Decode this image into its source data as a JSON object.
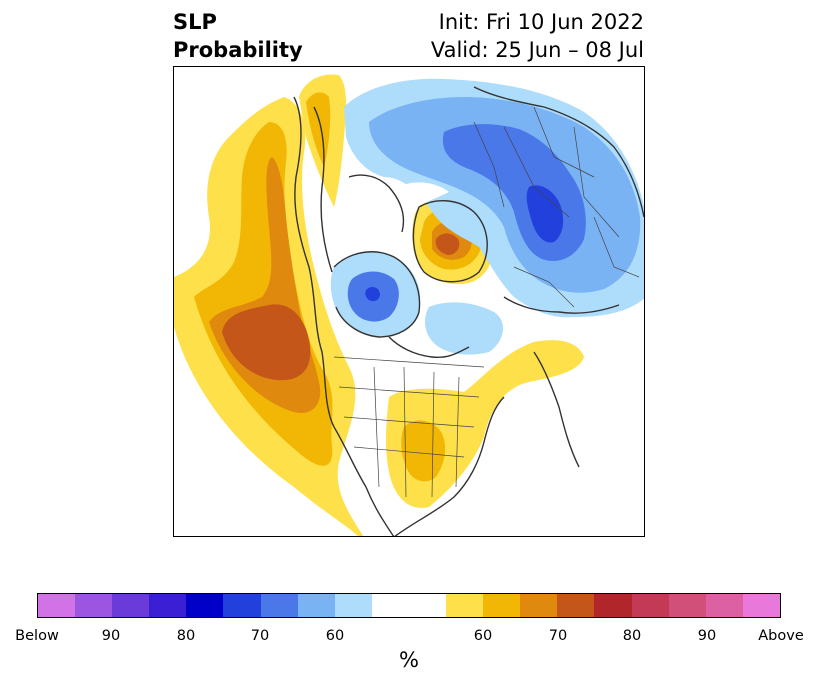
{
  "title": {
    "left_line1": "SLP",
    "left_line2": "Probability",
    "right_line1": "Init: Fri 10 Jun 2022",
    "right_line2": "Valid: 25 Jun – 08 Jul"
  },
  "colorbar": {
    "unit": "%",
    "colors": [
      "#d173e6",
      "#9b55e0",
      "#6b3bd9",
      "#3b1fd4",
      "#0000c8",
      "#2140dc",
      "#4a78e8",
      "#79b3f3",
      "#aedcfb",
      "#ffffff",
      "#ffffff",
      "#fde04a",
      "#f2b705",
      "#df8a0e",
      "#c5561a",
      "#b0262a",
      "#c23a55",
      "#d15079",
      "#dc61a3",
      "#e878d9"
    ],
    "labels": [
      "Below",
      "90",
      "80",
      "70",
      "60",
      "60",
      "70",
      "80",
      "90",
      "Above"
    ]
  },
  "map": {
    "projection": "north-polar-stereographic",
    "field": "SLP probability"
  }
}
